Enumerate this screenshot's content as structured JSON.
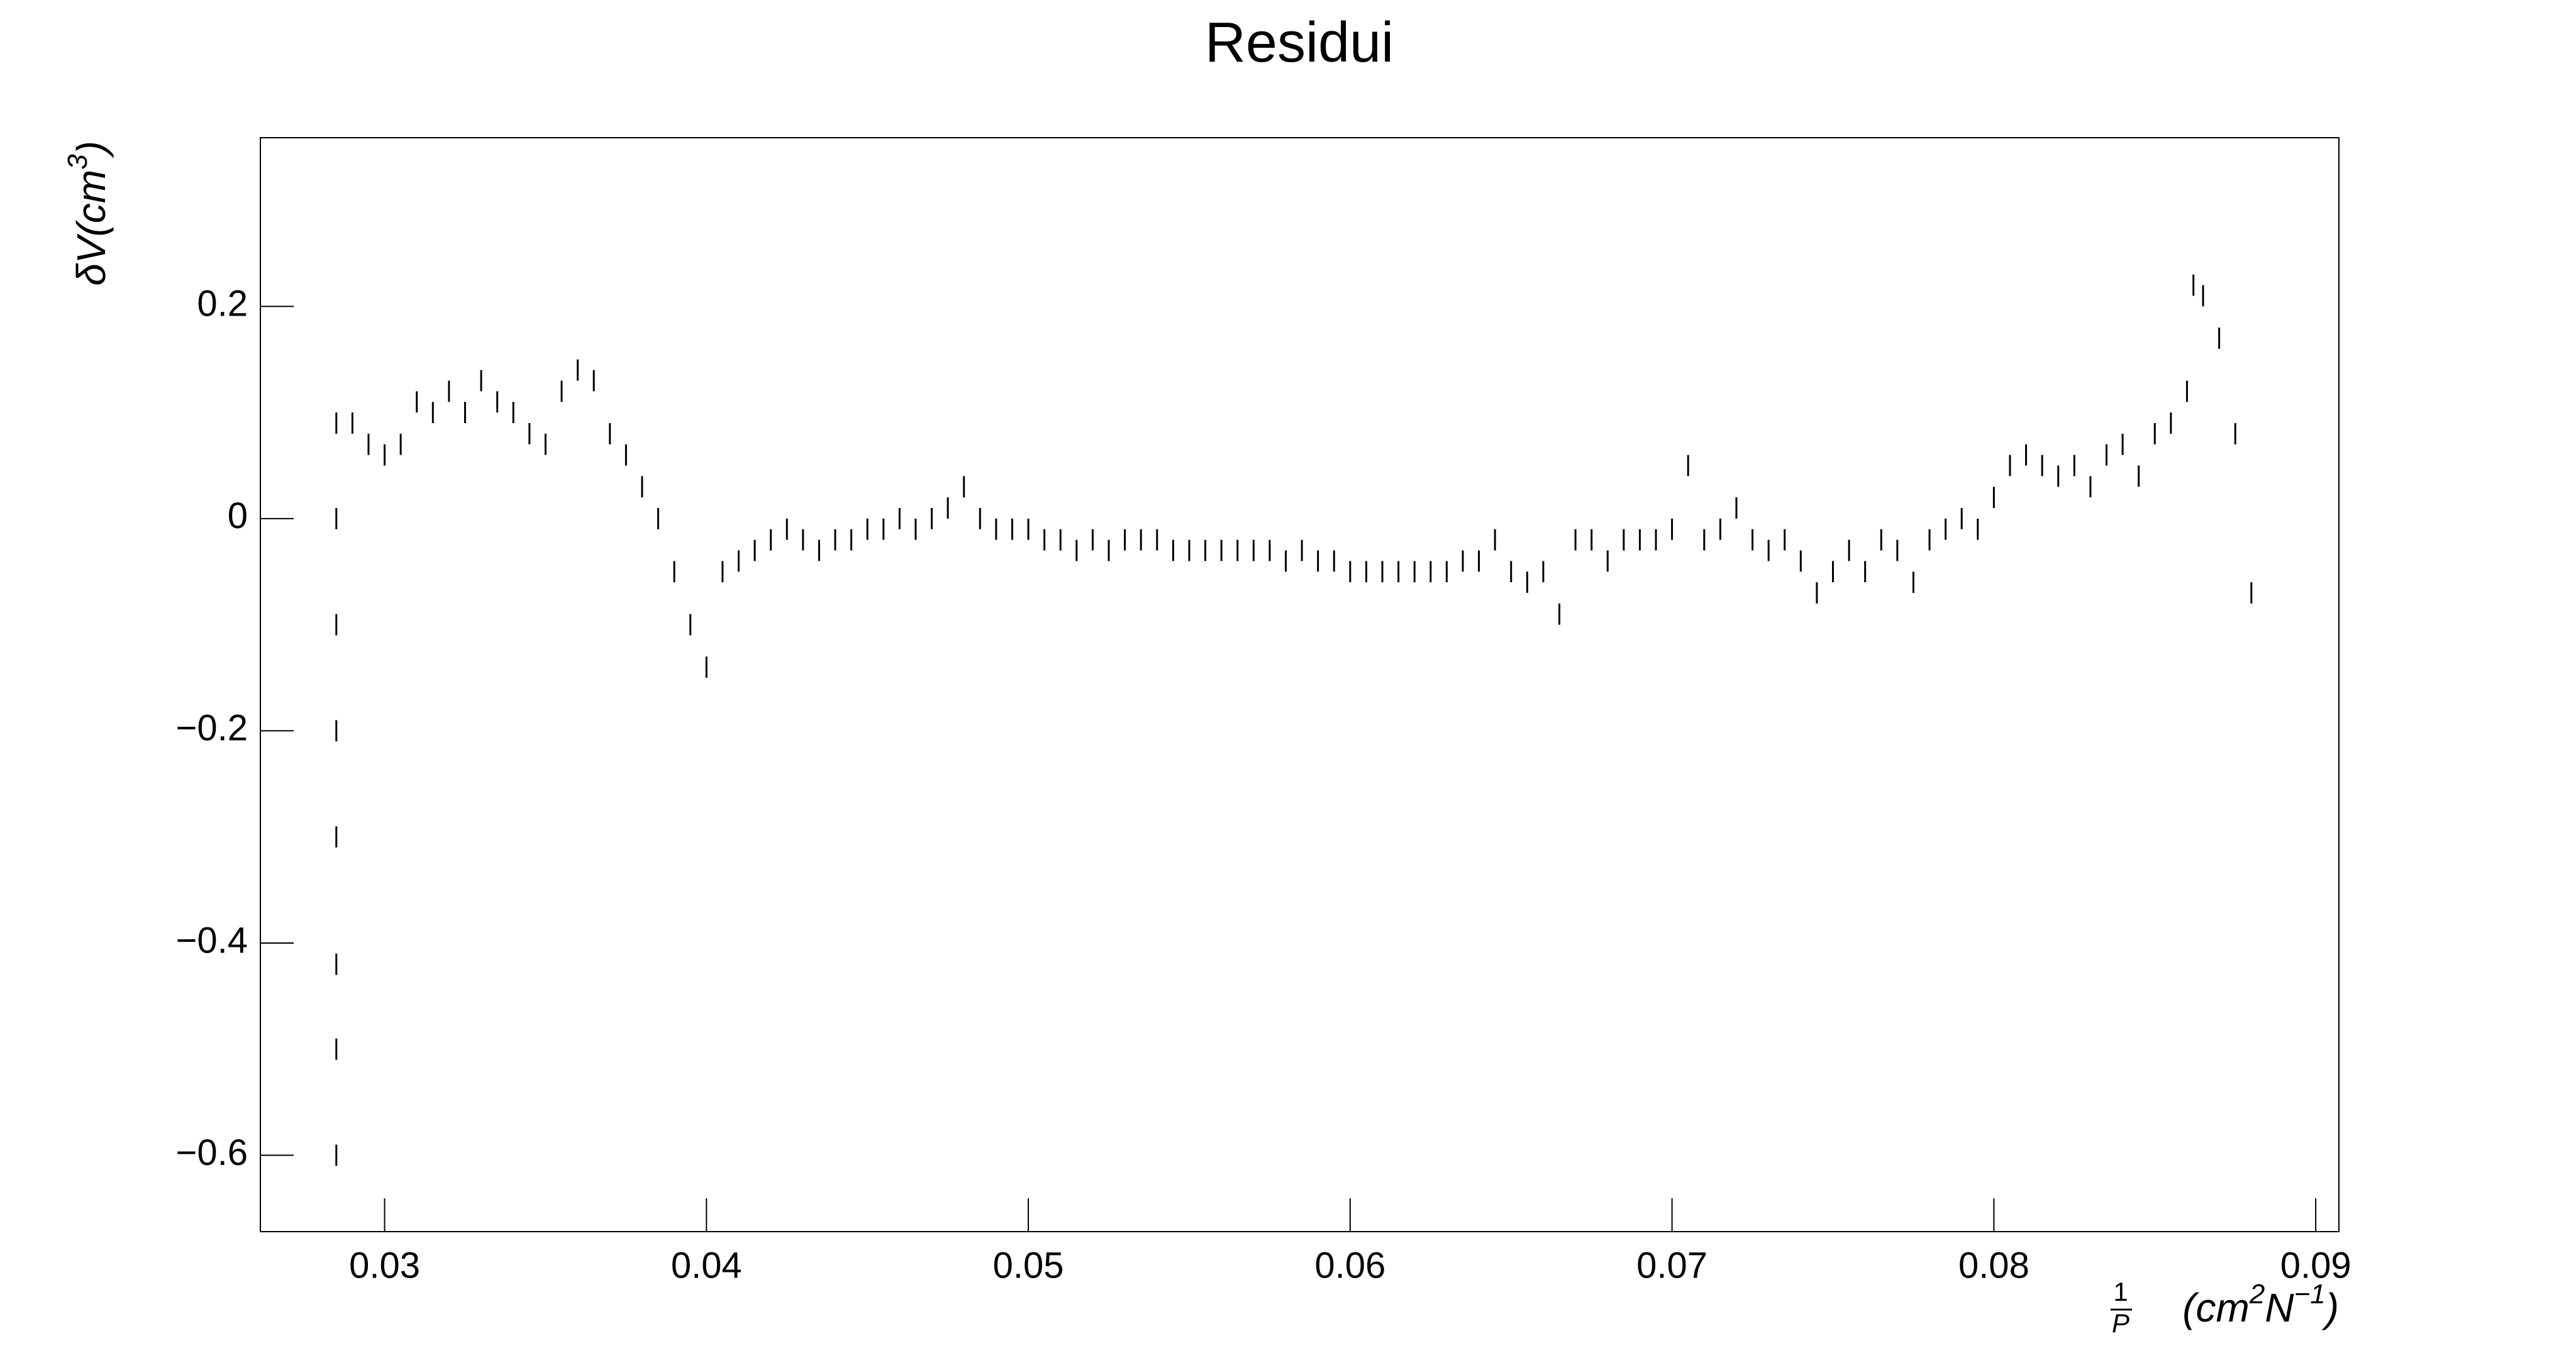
{
  "chart_data": {
    "type": "errorbar",
    "title": "Residui",
    "y_label": {
      "base": "δV(cm",
      "sup": "3",
      "close": ")"
    },
    "x_label": {
      "numerator": "1",
      "denominator": "P",
      "unit_a": "(cm",
      "sup_a": "2",
      "unit_b": "N",
      "sup_b": "−1",
      "close": ")"
    },
    "color": "#000000",
    "error": 0.01,
    "xlim": [
      0.02614,
      0.09072
    ],
    "xticks": [
      0.03,
      0.04,
      0.05,
      0.06,
      0.07,
      0.08,
      0.09
    ],
    "ylim": [
      -0.672,
      0.359
    ],
    "yticks": [
      {
        "value": -0.6,
        "label": "−0.6"
      },
      {
        "value": -0.4,
        "label": "−0.4"
      },
      {
        "value": -0.2,
        "label": "−0.2"
      },
      0,
      0.2
    ],
    "x": [
      0.0285,
      0.0285,
      0.0285,
      0.0285,
      0.0285,
      0.0285,
      0.0285,
      0.0285,
      0.029,
      0.0295,
      0.03,
      0.0305,
      0.031,
      0.0315,
      0.032,
      0.0325,
      0.033,
      0.0335,
      0.034,
      0.0345,
      0.035,
      0.0355,
      0.036,
      0.0365,
      0.037,
      0.0375,
      0.038,
      0.0385,
      0.039,
      0.0395,
      0.04,
      0.0405,
      0.041,
      0.0415,
      0.042,
      0.0425,
      0.043,
      0.0435,
      0.044,
      0.0445,
      0.045,
      0.0455,
      0.046,
      0.0465,
      0.047,
      0.0475,
      0.048,
      0.0485,
      0.049,
      0.0495,
      0.05,
      0.0505,
      0.051,
      0.0515,
      0.052,
      0.0525,
      0.053,
      0.0535,
      0.054,
      0.0545,
      0.055,
      0.0555,
      0.056,
      0.0565,
      0.057,
      0.0575,
      0.058,
      0.0585,
      0.059,
      0.0595,
      0.06,
      0.0605,
      0.061,
      0.0615,
      0.062,
      0.0625,
      0.063,
      0.0635,
      0.064,
      0.0645,
      0.065,
      0.0655,
      0.066,
      0.0665,
      0.067,
      0.0675,
      0.068,
      0.0685,
      0.069,
      0.0695,
      0.07,
      0.0705,
      0.071,
      0.0715,
      0.072,
      0.0725,
      0.073,
      0.0735,
      0.074,
      0.0745,
      0.075,
      0.0755,
      0.076,
      0.0765,
      0.077,
      0.0775,
      0.078,
      0.0785,
      0.079,
      0.0795,
      0.08,
      0.0805,
      0.081,
      0.0815,
      0.082,
      0.0825,
      0.083,
      0.0835,
      0.084,
      0.0845,
      0.085,
      0.0855,
      0.086,
      0.0862,
      0.0865,
      0.087,
      0.0875,
      0.088
    ],
    "values": [
      -0.6,
      -0.5,
      -0.42,
      -0.3,
      -0.2,
      -0.1,
      0,
      0.09,
      0.09,
      0.07,
      0.06,
      0.07,
      0.11,
      0.1,
      0.12,
      0.1,
      0.13,
      0.11,
      0.1,
      0.08,
      0.07,
      0.12,
      0.14,
      0.13,
      0.08,
      0.06,
      0.03,
      0,
      -0.05,
      -0.1,
      -0.14,
      -0.05,
      -0.04,
      -0.03,
      -0.02,
      -0.01,
      -0.02,
      -0.03,
      -0.02,
      -0.02,
      -0.01,
      -0.01,
      0,
      -0.01,
      0,
      0.01,
      0.03,
      0,
      -0.01,
      -0.01,
      -0.01,
      -0.02,
      -0.02,
      -0.03,
      -0.02,
      -0.03,
      -0.02,
      -0.02,
      -0.02,
      -0.03,
      -0.03,
      -0.03,
      -0.03,
      -0.03,
      -0.03,
      -0.03,
      -0.04,
      -0.03,
      -0.04,
      -0.04,
      -0.05,
      -0.05,
      -0.05,
      -0.05,
      -0.05,
      -0.05,
      -0.05,
      -0.04,
      -0.04,
      -0.02,
      -0.05,
      -0.06,
      -0.05,
      -0.09,
      -0.02,
      -0.02,
      -0.04,
      -0.02,
      -0.02,
      -0.02,
      -0.01,
      0.05,
      -0.02,
      -0.01,
      0.01,
      -0.02,
      -0.03,
      -0.02,
      -0.04,
      -0.07,
      -0.05,
      -0.03,
      -0.05,
      -0.02,
      -0.03,
      -0.06,
      -0.02,
      -0.01,
      0,
      -0.01,
      0.02,
      0.05,
      0.06,
      0.05,
      0.04,
      0.05,
      0.03,
      0.06,
      0.07,
      0.04,
      0.08,
      0.09,
      0.12,
      0.22,
      0.21,
      0.17,
      0.08,
      -0.07
    ]
  }
}
